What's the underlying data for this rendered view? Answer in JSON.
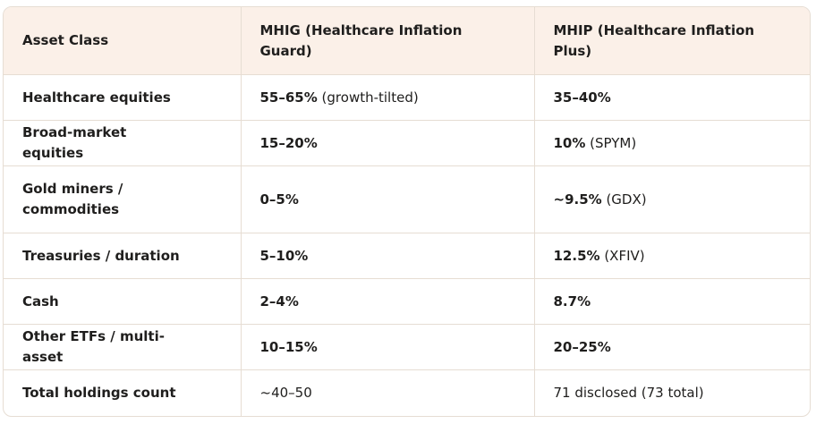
{
  "table": {
    "headers": [
      "Asset Class",
      "MHIG (Healthcare Inflation Guard)",
      "MHIP (Healthcare Inflation Plus)"
    ],
    "rows": [
      {
        "label": "Healthcare equities",
        "mhig": {
          "value": "55–65%",
          "note": " (growth-tilted)"
        },
        "mhip": {
          "value": "35–40%",
          "note": ""
        }
      },
      {
        "label": "Broad-market equities",
        "mhig": {
          "value": "15–20%",
          "note": ""
        },
        "mhip": {
          "value": "10%",
          "note": " (SPYM)"
        }
      },
      {
        "label": "Gold miners / commodities",
        "mhig": {
          "value": "0–5%",
          "note": ""
        },
        "mhip": {
          "value": "~9.5%",
          "note": " (GDX)"
        }
      },
      {
        "label": "Treasuries / duration",
        "mhig": {
          "value": "5–10%",
          "note": ""
        },
        "mhip": {
          "value": "12.5%",
          "note": " (XFIV)"
        }
      },
      {
        "label": "Cash",
        "mhig": {
          "value": "2–4%",
          "note": ""
        },
        "mhip": {
          "value": "8.7%",
          "note": ""
        }
      },
      {
        "label": "Other ETFs / multi-asset",
        "mhig": {
          "value": "10–15%",
          "note": ""
        },
        "mhip": {
          "value": "20–25%",
          "note": ""
        }
      },
      {
        "label": "Total holdings count",
        "mhig": {
          "value": "",
          "note": "~40–50"
        },
        "mhip": {
          "value": "",
          "note": "71 disclosed (73 total)"
        }
      }
    ]
  }
}
